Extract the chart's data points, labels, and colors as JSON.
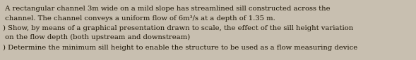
{
  "lines": [
    " A rectangular channel 3m wide on a mild slope has streamlined sill constructed across the",
    " channel. The channel conveys a uniform flow of 6m³/s at a depth of 1.35 m.",
    ") Show, by means of a graphical presentation drawn to scale, the effect of the sill height variation",
    " on the flow depth (both upstream and downstream)",
    ") Determine the minimum sill height to enable the structure to be used as a flow measuring device"
  ],
  "bg_color": "#c8bfb0",
  "text_color": "#1a1202",
  "font_size": 7.2,
  "fig_width": 5.89,
  "fig_height": 0.86,
  "dpi": 100
}
